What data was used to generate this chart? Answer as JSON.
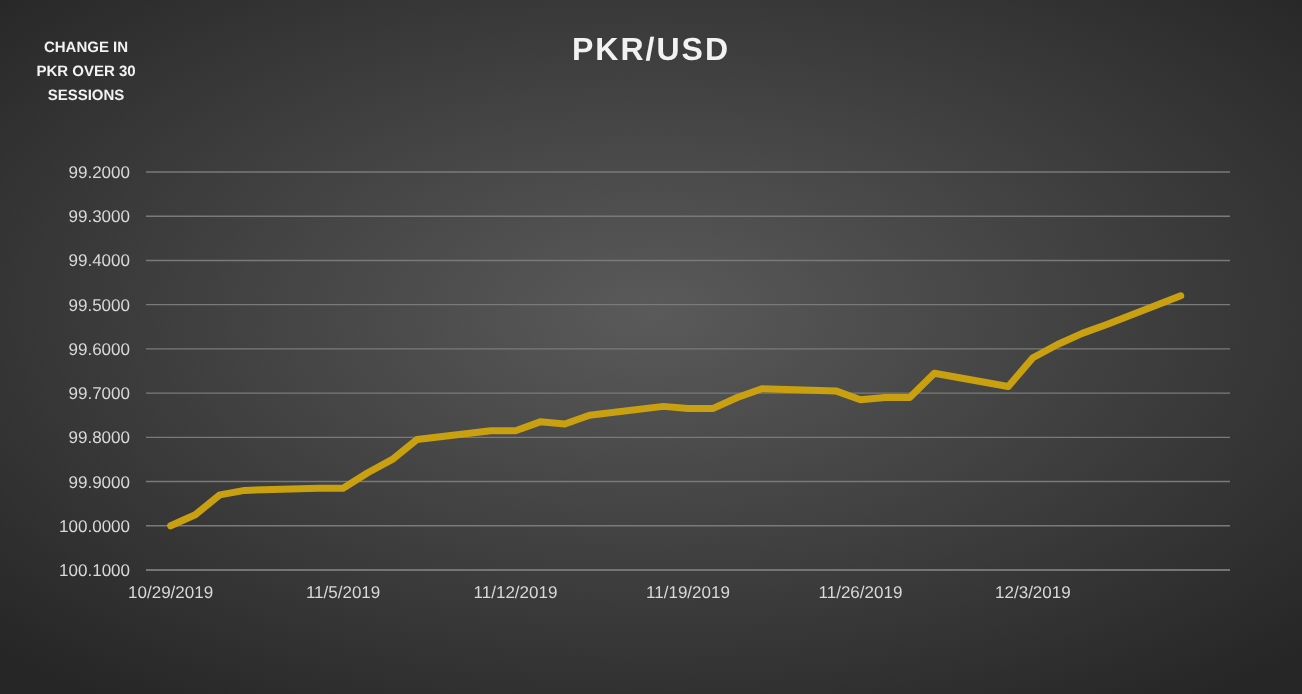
{
  "chart_data": {
    "type": "line",
    "title": "PKR/USD",
    "ylabel": "CHANGE IN PKR OVER 30 SESSIONS",
    "x": [
      "2019-10-29",
      "2019-10-30",
      "2019-10-31",
      "2019-11-01",
      "2019-11-04",
      "2019-11-05",
      "2019-11-06",
      "2019-11-07",
      "2019-11-08",
      "2019-11-11",
      "2019-11-12",
      "2019-11-13",
      "2019-11-14",
      "2019-11-15",
      "2019-11-18",
      "2019-11-19",
      "2019-11-20",
      "2019-11-21",
      "2019-11-22",
      "2019-11-25",
      "2019-11-26",
      "2019-11-27",
      "2019-11-28",
      "2019-11-29",
      "2019-12-02",
      "2019-12-03",
      "2019-12-04",
      "2019-12-05",
      "2019-12-06",
      "2019-12-09"
    ],
    "series": [
      {
        "color": "#c9a010",
        "values": [
          100.0,
          99.975,
          99.93,
          99.92,
          99.915,
          99.915,
          99.88,
          99.85,
          99.805,
          99.785,
          99.785,
          99.765,
          99.77,
          99.75,
          99.73,
          99.735,
          99.735,
          99.71,
          99.69,
          99.695,
          99.715,
          99.71,
          99.71,
          99.655,
          99.685,
          99.62,
          99.59,
          99.565,
          99.545,
          99.48
        ]
      }
    ],
    "xlim": [
      "2019-10-28",
      "2019-12-11"
    ],
    "xticks": [
      {
        "value": "2019-10-29",
        "label": "10/29/2019"
      },
      {
        "value": "2019-11-05",
        "label": "11/5/2019"
      },
      {
        "value": "2019-11-12",
        "label": "11/12/2019"
      },
      {
        "value": "2019-11-19",
        "label": "11/19/2019"
      },
      {
        "value": "2019-11-26",
        "label": "11/26/2019"
      },
      {
        "value": "2019-12-03",
        "label": "12/3/2019"
      }
    ],
    "ylim": [
      100.1,
      99.2
    ],
    "yticks": [
      {
        "value": 99.2,
        "label": "99.2000"
      },
      {
        "value": 99.3,
        "label": "99.3000"
      },
      {
        "value": 99.4,
        "label": "99.4000"
      },
      {
        "value": 99.5,
        "label": "99.5000"
      },
      {
        "value": 99.6,
        "label": "99.6000"
      },
      {
        "value": 99.7,
        "label": "99.7000"
      },
      {
        "value": 99.8,
        "label": "99.8000"
      },
      {
        "value": 99.9,
        "label": "99.9000"
      },
      {
        "value": 100.0,
        "label": "100.0000"
      },
      {
        "value": 100.1,
        "label": "100.1000"
      }
    ],
    "grid": "y",
    "marker": "none",
    "line_style": "solid"
  }
}
